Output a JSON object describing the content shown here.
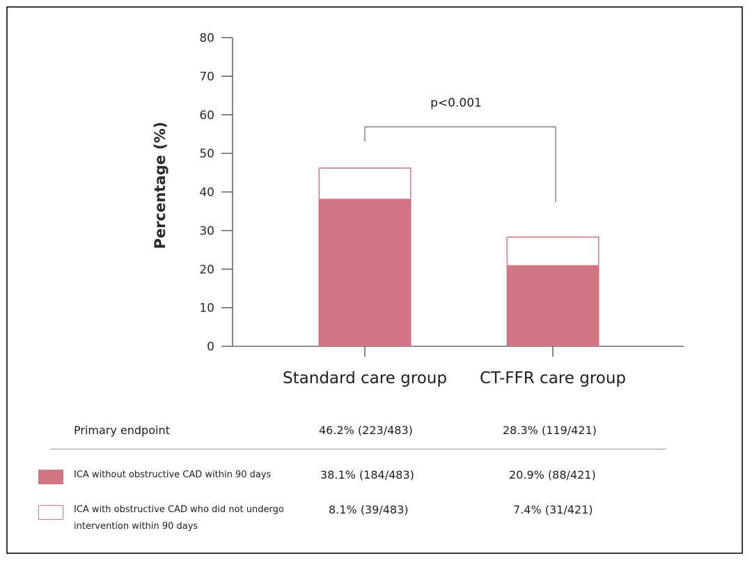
{
  "colors": {
    "filled": "#d27583",
    "outline": "#d27583",
    "axis": "#4a4a4a"
  },
  "chart_data": {
    "type": "bar",
    "stacked": true,
    "ylabel": "Percentage (%)",
    "ylim": [
      0,
      80
    ],
    "yticks": [
      "0",
      "10",
      "20",
      "30",
      "40",
      "50",
      "60",
      "70",
      "80"
    ],
    "categories": [
      "Standard care group",
      "CT-FFR care group"
    ],
    "series": [
      {
        "values": [
          38.1,
          20.9
        ],
        "style": "filled"
      },
      {
        "values": [
          8.1,
          7.4
        ],
        "style": "outline"
      }
    ],
    "annotation": {
      "text": "p<0.001"
    }
  },
  "table": {
    "primary": {
      "label": "Primary endpoint",
      "values": [
        "46.2% (223/483)",
        "28.3% (119/421)"
      ]
    },
    "rows": [
      {
        "label": "ICA without obstructive CAD within 90 days",
        "values": [
          "38.1% (184/483)",
          "20.9% (88/421)"
        ],
        "swatch": "filled"
      },
      {
        "label": "ICA with obstructive CAD who did not undergo intervention within 90 days",
        "values": [
          "8.1% (39/483)",
          "7.4% (31/421)"
        ],
        "swatch": "outline"
      }
    ]
  }
}
